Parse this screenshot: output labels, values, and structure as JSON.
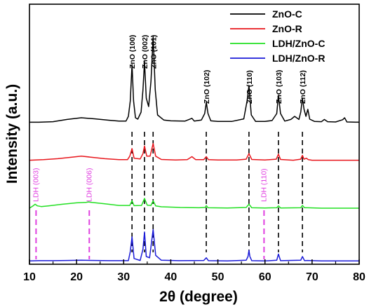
{
  "chart_data": {
    "type": "line",
    "xlabel": "2θ (degree)",
    "ylabel": "Intensity (a.u.)",
    "xlim": [
      10,
      80
    ],
    "xticks": [
      10,
      20,
      30,
      40,
      50,
      60,
      70,
      80
    ],
    "xtick_labels": [
      "10",
      "20",
      "30",
      "40",
      "50",
      "60",
      "70",
      "80"
    ],
    "y_ticks": "none",
    "grid": false,
    "legend_position": "top-right",
    "series": [
      {
        "name": "ZnO-C",
        "color": "#000000",
        "x": [
          10,
          12,
          15,
          18,
          21,
          24,
          27,
          29,
          30.5,
          31,
          31.4,
          31.77,
          32.1,
          32.5,
          33,
          33.7,
          34.1,
          34.42,
          34.8,
          35.3,
          35.8,
          36.25,
          36.7,
          37.2,
          38.5,
          40,
          43,
          44.5,
          45,
          46.5,
          47.2,
          47.54,
          47.9,
          48.5,
          50,
          53,
          55.5,
          56.2,
          56.6,
          57.1,
          58,
          60,
          61.5,
          62.5,
          62.86,
          63.3,
          64.2,
          65.5,
          66.3,
          67.2,
          67.6,
          67.95,
          68.3,
          68.7,
          69.1,
          69.5,
          70.5,
          72,
          72.6,
          73.3,
          75,
          76.5,
          76.9,
          77.4,
          80
        ],
        "values": [
          0.4,
          0.4,
          0.6,
          1.4,
          2.0,
          1.6,
          1.1,
          0.8,
          0.8,
          2.5,
          8,
          21,
          8,
          2,
          1.5,
          4,
          12,
          22,
          9,
          6,
          15,
          31,
          12,
          3,
          1.2,
          0.9,
          0.8,
          1.8,
          0.8,
          1.2,
          3.5,
          7.5,
          3.5,
          0.9,
          0.7,
          0.7,
          1.6,
          8,
          13.5,
          3,
          0.7,
          0.7,
          1.0,
          3.5,
          10,
          3.5,
          0.8,
          1.4,
          2.5,
          1.4,
          4,
          9,
          5,
          2.5,
          5,
          1.5,
          0.7,
          0.6,
          1.4,
          0.6,
          0.5,
          1.3,
          2.0,
          0.5,
          0.4
        ]
      },
      {
        "name": "ZnO-R",
        "color": "#e8161c",
        "x": [
          10,
          13,
          16,
          19,
          21,
          23,
          26,
          29,
          30.8,
          31.3,
          31.77,
          32.2,
          33.5,
          34.1,
          34.42,
          34.9,
          35.6,
          36.25,
          36.8,
          38,
          41,
          43.5,
          44.5,
          45.3,
          47,
          47.54,
          48,
          50,
          54,
          56,
          56.6,
          57.2,
          60,
          62.4,
          62.86,
          63.3,
          66,
          67.6,
          67.95,
          68.3,
          68.8,
          69.2,
          70,
          73,
          76.5,
          80
        ],
        "values": [
          0.4,
          0.6,
          1.0,
          1.6,
          2.0,
          1.6,
          1.0,
          0.6,
          0.6,
          2.0,
          5.0,
          1.2,
          0.9,
          3.0,
          6.0,
          2.0,
          2.0,
          7.0,
          2.0,
          0.7,
          0.5,
          0.6,
          1.8,
          0.6,
          0.6,
          1.8,
          0.6,
          0.5,
          0.5,
          0.8,
          3.0,
          0.7,
          0.5,
          0.8,
          2.8,
          0.7,
          0.4,
          0.8,
          2.3,
          0.8,
          1.2,
          0.6,
          0.4,
          0.4,
          0.4,
          0.4
        ]
      },
      {
        "name": "LDH/ZnO-C",
        "color": "#22e022",
        "x": [
          10,
          10.7,
          11.2,
          11.7,
          12.5,
          14,
          17,
          20,
          22,
          22.5,
          23.2,
          26,
          29,
          31.3,
          31.77,
          32.2,
          33.8,
          34.42,
          35,
          35.8,
          36.25,
          36.8,
          38,
          42,
          46,
          47.3,
          47.54,
          47.9,
          52,
          56,
          56.6,
          57.2,
          60,
          62.5,
          62.86,
          63.3,
          67.6,
          67.95,
          68.4,
          69,
          72,
          76,
          80
        ],
        "values": [
          0.3,
          1.2,
          2.0,
          1.3,
          1.0,
          1.3,
          2.0,
          2.6,
          2.8,
          3.0,
          2.8,
          2.2,
          1.5,
          1.5,
          3.5,
          1.4,
          1.5,
          4.5,
          1.6,
          1.5,
          3.5,
          1.3,
          0.9,
          0.6,
          0.5,
          0.6,
          1.4,
          0.5,
          0.4,
          0.6,
          2.0,
          0.5,
          0.4,
          0.5,
          1.3,
          0.4,
          0.5,
          1.5,
          0.5,
          0.5,
          0.3,
          0.3,
          0.3
        ]
      },
      {
        "name": "LDH/ZnO-R",
        "color": "#1a1ad8",
        "x": [
          10,
          12,
          15,
          18,
          21,
          24,
          27,
          29,
          31,
          31.4,
          31.77,
          32.2,
          33.5,
          34.1,
          34.42,
          34.8,
          35.5,
          36.25,
          36.8,
          38,
          42,
          47,
          47.54,
          48,
          52,
          56,
          56.4,
          56.6,
          56.8,
          57.2,
          60,
          62.5,
          62.86,
          63.3,
          67.6,
          67.95,
          68.4,
          69,
          72,
          76,
          80
        ],
        "values": [
          0.2,
          0.3,
          0.3,
          0.4,
          0.5,
          0.4,
          0.3,
          0.3,
          0.3,
          4,
          10,
          1.2,
          0.4,
          5,
          12,
          2,
          1.5,
          13,
          2.5,
          0.5,
          0.3,
          0.4,
          1.5,
          0.3,
          0.2,
          0.5,
          2,
          4.5,
          2,
          0.3,
          0.2,
          0.5,
          3,
          0.3,
          0.5,
          2,
          0.3,
          0.4,
          0.2,
          0.2,
          0.2
        ]
      }
    ],
    "annotations": [
      {
        "text": "ZnO (100)",
        "x": 31.77,
        "kind": "zno"
      },
      {
        "text": "ZnO (002)",
        "x": 34.42,
        "kind": "zno"
      },
      {
        "text": "ZnO (101)",
        "x": 36.25,
        "kind": "zno"
      },
      {
        "text": "ZnO (102)",
        "x": 47.54,
        "kind": "zno"
      },
      {
        "text": "ZnO (110)",
        "x": 56.6,
        "kind": "zno"
      },
      {
        "text": "ZnO (103)",
        "x": 62.86,
        "kind": "zno"
      },
      {
        "text": "ZnO (112)",
        "x": 67.95,
        "kind": "zno"
      },
      {
        "text": "LDH (003)",
        "x": 11.4,
        "kind": "ldh"
      },
      {
        "text": "LDH (006)",
        "x": 22.7,
        "kind": "ldh"
      },
      {
        "text": "LDH (110)",
        "x": 59.8,
        "kind": "ldh"
      }
    ]
  }
}
